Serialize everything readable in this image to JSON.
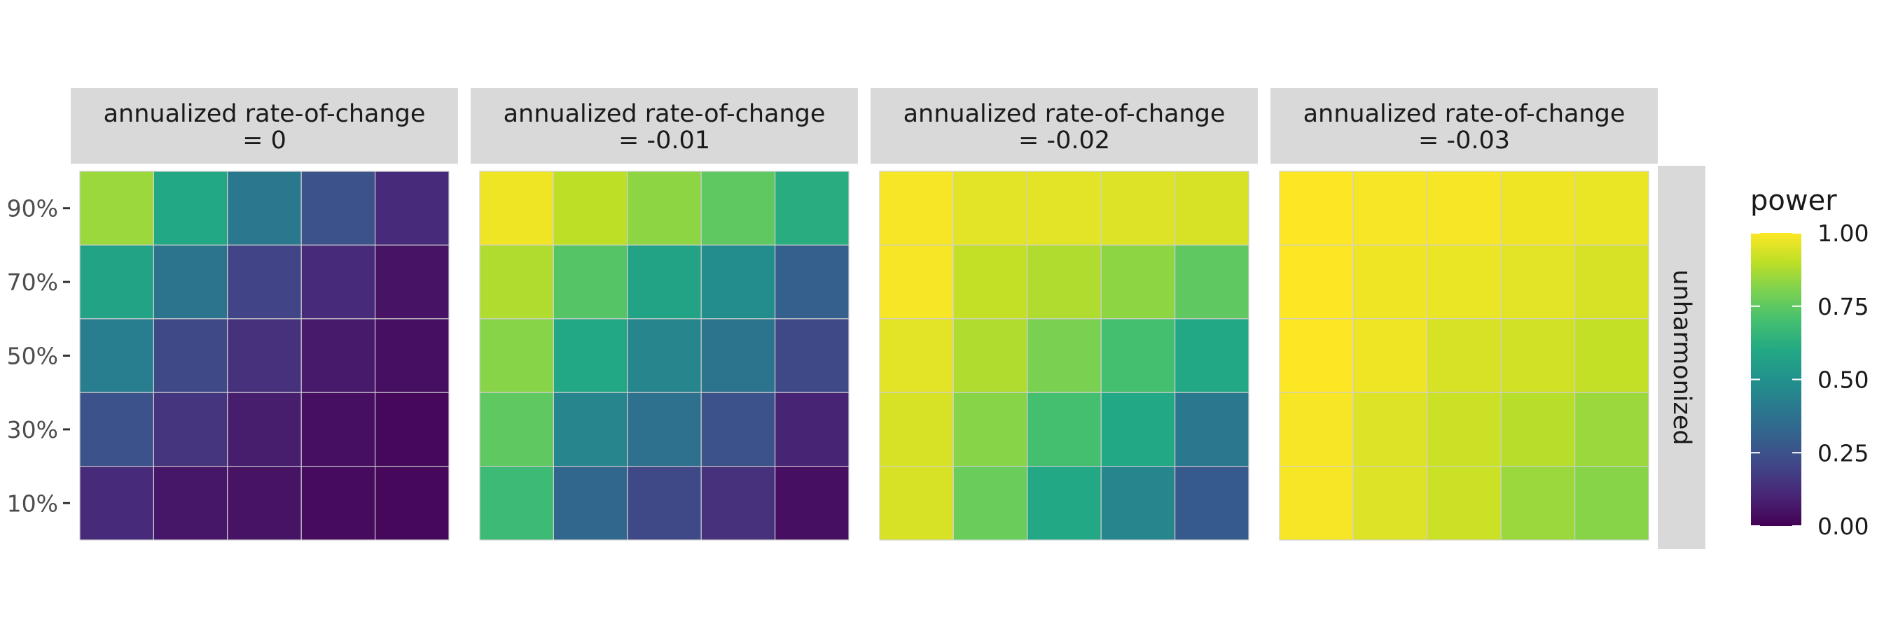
{
  "chart_data": {
    "type": "heatmap",
    "facet_titles": [
      [
        "annualized rate-of-change",
        "= 0"
      ],
      [
        "annualized rate-of-change",
        "= -0.01"
      ],
      [
        "annualized rate-of-change",
        "= -0.02"
      ],
      [
        "annualized rate-of-change",
        "= -0.03"
      ]
    ],
    "row_strip": "unharmonized",
    "y_tick_labels": [
      "90%",
      "70%",
      "50%",
      "30%",
      "10%"
    ],
    "x_tick_labels": [],
    "xlabel": "",
    "ylabel": "",
    "legend": {
      "title": "power",
      "ticks": [
        "1.00",
        "0.75",
        "0.50",
        "0.25",
        "0.00"
      ],
      "tick_values": [
        1.0,
        0.75,
        0.5,
        0.25,
        0.0
      ],
      "range": [
        0,
        1
      ],
      "colormap": "viridis",
      "placement": "right"
    },
    "panels": [
      {
        "rate": 0,
        "values": [
          [
            0.85,
            0.6,
            0.4,
            0.25,
            0.12
          ],
          [
            0.58,
            0.38,
            0.2,
            0.12,
            0.05
          ],
          [
            0.42,
            0.22,
            0.14,
            0.07,
            0.04
          ],
          [
            0.25,
            0.15,
            0.08,
            0.04,
            0.02
          ],
          [
            0.12,
            0.06,
            0.05,
            0.03,
            0.02
          ]
        ]
      },
      {
        "rate": -0.01,
        "values": [
          [
            0.98,
            0.9,
            0.83,
            0.75,
            0.62
          ],
          [
            0.88,
            0.73,
            0.58,
            0.48,
            0.3
          ],
          [
            0.82,
            0.6,
            0.45,
            0.38,
            0.22
          ],
          [
            0.75,
            0.45,
            0.37,
            0.25,
            0.1
          ],
          [
            0.68,
            0.33,
            0.22,
            0.14,
            0.04
          ]
        ]
      },
      {
        "rate": -0.02,
        "values": [
          [
            0.99,
            0.96,
            0.96,
            0.95,
            0.94
          ],
          [
            0.99,
            0.91,
            0.88,
            0.83,
            0.75
          ],
          [
            0.96,
            0.88,
            0.8,
            0.7,
            0.6
          ],
          [
            0.94,
            0.82,
            0.7,
            0.6,
            0.4
          ],
          [
            0.94,
            0.77,
            0.6,
            0.45,
            0.28
          ]
        ]
      },
      {
        "rate": -0.03,
        "values": [
          [
            1.0,
            0.99,
            0.99,
            0.98,
            0.97
          ],
          [
            1.0,
            0.98,
            0.97,
            0.96,
            0.94
          ],
          [
            1.0,
            0.98,
            0.94,
            0.93,
            0.91
          ],
          [
            0.99,
            0.95,
            0.92,
            0.89,
            0.85
          ],
          [
            0.99,
            0.95,
            0.92,
            0.85,
            0.82
          ]
        ]
      }
    ]
  }
}
